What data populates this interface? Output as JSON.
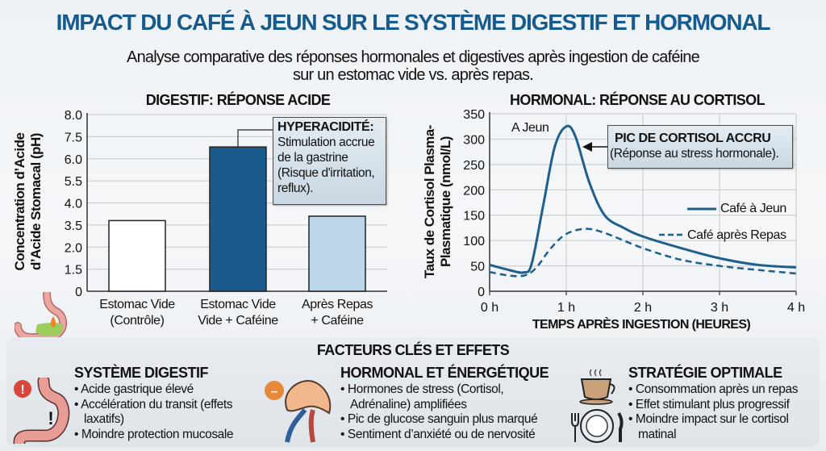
{
  "header": {
    "title": "IMPACT DU CAFÉ À JEUN SUR LE SYSTÈME DIGESTIF ET HORMONAL",
    "subtitle_line1": "Analyse comparative des réponses hormonales et digestives après ingestion de caféine",
    "subtitle_line2": "sur un estomac vide vs. après repas."
  },
  "chart_data": [
    {
      "type": "bar",
      "title": "DIGESTIF: RÉPONSE ACIDE",
      "ylabel_line1": "Concentration d’Acide",
      "ylabel_line2": "d’Acide Stomacal (pH)",
      "xlabel": "",
      "y_ticks": [
        "0",
        "1.5",
        "2.0",
        "3.5",
        "4.0",
        "5.5",
        "6.0",
        "7.5",
        "8.0"
      ],
      "y_tick_values": [
        0,
        1.5,
        2.0,
        3.5,
        4.0,
        5.5,
        6.0,
        7.5,
        8.0
      ],
      "ylim": [
        0,
        8.0
      ],
      "grid": true,
      "categories": [
        {
          "line1": "Estomac Vide",
          "line2": "(Contrôle)"
        },
        {
          "line1": "Estomac Vide",
          "line2": "Vide + Caféine"
        },
        {
          "line1": "Après Repas",
          "line2": "+ Caféine"
        }
      ],
      "values": [
        3.6,
        6.8,
        3.7
      ],
      "colors": [
        "#ffffff",
        "#1b5a8c",
        "#bcd7ea"
      ],
      "annotation": {
        "title": "HYPERACIDITÉ:",
        "lines": [
          "Stimulation accrue",
          "de la gastrine",
          "(Risque d'irritation,",
          "reflux)."
        ]
      }
    },
    {
      "type": "line",
      "title": "HORMONAL: RÉPONSE AU CORTISOL",
      "ylabel_line1": "Taux de Cortisol Plasma-",
      "ylabel_line2": "Plasmatique (nmol/L)",
      "xlabel": "TEMPS APRÈS INGESTION (HEURES)",
      "x_ticks": [
        "0 h",
        "1 h",
        "2 h",
        "3 h",
        "4 h"
      ],
      "x_tick_values": [
        0,
        1,
        2,
        3,
        4
      ],
      "y_ticks": [
        "0",
        "50",
        "100",
        "150",
        "200",
        "250",
        "300",
        "350"
      ],
      "y_tick_values": [
        0,
        50,
        100,
        150,
        200,
        250,
        300,
        350
      ],
      "xlim": [
        0,
        4
      ],
      "ylim": [
        0,
        350
      ],
      "grid": true,
      "legend_position": "right",
      "series": [
        {
          "name": "Café à Jeun",
          "style": "solid",
          "color": "#1f5f8b",
          "x": [
            0,
            0.25,
            0.45,
            0.55,
            0.7,
            0.85,
            1.0,
            1.12,
            1.3,
            1.5,
            1.75,
            2.0,
            2.5,
            3.0,
            3.5,
            4.0
          ],
          "y": [
            52,
            42,
            37,
            55,
            170,
            285,
            325,
            305,
            215,
            150,
            125,
            108,
            85,
            65,
            52,
            47
          ]
        },
        {
          "name": "Café après Repas",
          "style": "dashed",
          "color": "#1f5f8b",
          "x": [
            0,
            0.25,
            0.45,
            0.6,
            0.8,
            1.0,
            1.25,
            1.5,
            2.0,
            2.5,
            3.0,
            3.5,
            4.0
          ],
          "y": [
            38,
            31,
            31,
            45,
            85,
            113,
            123,
            115,
            85,
            62,
            50,
            42,
            35
          ]
        }
      ],
      "peak_label": "A Jeun",
      "annotation": {
        "title": "PIC DE CORTISOL ACCRU",
        "text": "(Réponse au stress hormonale)."
      }
    }
  ],
  "factors": {
    "title": "FACTEURS CLÉS ET EFFETS",
    "columns": [
      {
        "icon": "stomach-alert-icon",
        "badge": "!",
        "title": "SYSTÈME DIGESTIF",
        "bullets": [
          "• Acide gastrique élevé",
          "• Accélération du transit (effets laxatifs)",
          "• Moindre protection mucosale"
        ]
      },
      {
        "icon": "adrenal-gland-icon",
        "badge": "–",
        "title": "HORMONAL ET ÉNERGÉTIQUE",
        "bullets": [
          "• Hormones de stress (Cortisol, Adrénaline) amplifiées",
          "• Pic de glucose sanguin plus marqué",
          "• Sentiment d’anxiété ou de nervosité"
        ]
      },
      {
        "icon": "coffee-and-plate-icon",
        "title": "STRATÉGIE OPTIMALE",
        "bullets": [
          "• Consommation après un repas",
          "• Effet stimulant plus progressif",
          "• Moindre impact sur le cortisol matinal"
        ]
      }
    ]
  }
}
